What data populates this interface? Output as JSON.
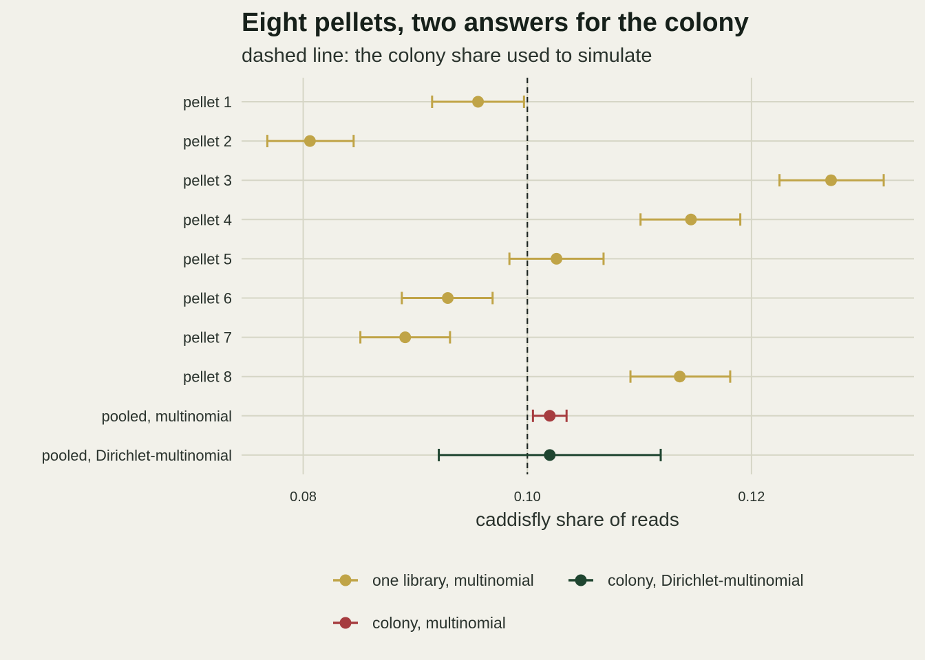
{
  "chart_data": {
    "type": "scatter",
    "title": "Eight pellets, two answers for the colony",
    "subtitle": "dashed line: the colony share used to simulate",
    "xlabel": "caddisfly share of reads",
    "ylabel": "",
    "xlim": [
      0.0745,
      0.1345
    ],
    "x_ticks": [
      "0.08",
      "0.10",
      "0.12"
    ],
    "x_tick_values": [
      0.08,
      0.1,
      0.12
    ],
    "reference_line": 0.1,
    "grid": true,
    "legend_position": "bottom",
    "rows": [
      {
        "label": "pellet 1",
        "estimate": 0.0956,
        "low": 0.0915,
        "high": 0.0997,
        "group": "one library, multinomial"
      },
      {
        "label": "pellet 2",
        "estimate": 0.0806,
        "low": 0.0768,
        "high": 0.0845,
        "group": "one library, multinomial"
      },
      {
        "label": "pellet 3",
        "estimate": 0.1271,
        "low": 0.1225,
        "high": 0.1318,
        "group": "one library, multinomial"
      },
      {
        "label": "pellet 4",
        "estimate": 0.1146,
        "low": 0.1101,
        "high": 0.119,
        "group": "one library, multinomial"
      },
      {
        "label": "pellet 5",
        "estimate": 0.1026,
        "low": 0.0984,
        "high": 0.1068,
        "group": "one library, multinomial"
      },
      {
        "label": "pellet 6",
        "estimate": 0.0929,
        "low": 0.0888,
        "high": 0.0969,
        "group": "one library, multinomial"
      },
      {
        "label": "pellet 7",
        "estimate": 0.0891,
        "low": 0.0851,
        "high": 0.0931,
        "group": "one library, multinomial"
      },
      {
        "label": "pellet 8",
        "estimate": 0.1136,
        "low": 0.1092,
        "high": 0.1181,
        "group": "one library, multinomial"
      },
      {
        "label": "pooled, multinomial",
        "estimate": 0.102,
        "low": 0.1005,
        "high": 0.1035,
        "group": "colony, multinomial"
      },
      {
        "label": "pooled, Dirichlet-multinomial",
        "estimate": 0.102,
        "low": 0.0921,
        "high": 0.1119,
        "group": "colony, Dirichlet-multinomial"
      }
    ],
    "legend": [
      {
        "name": "one library, multinomial",
        "color": "#c0a447"
      },
      {
        "name": "colony, Dirichlet-multinomial",
        "color": "#1f4530"
      },
      {
        "name": "colony, multinomial",
        "color": "#a63c3f"
      }
    ]
  }
}
